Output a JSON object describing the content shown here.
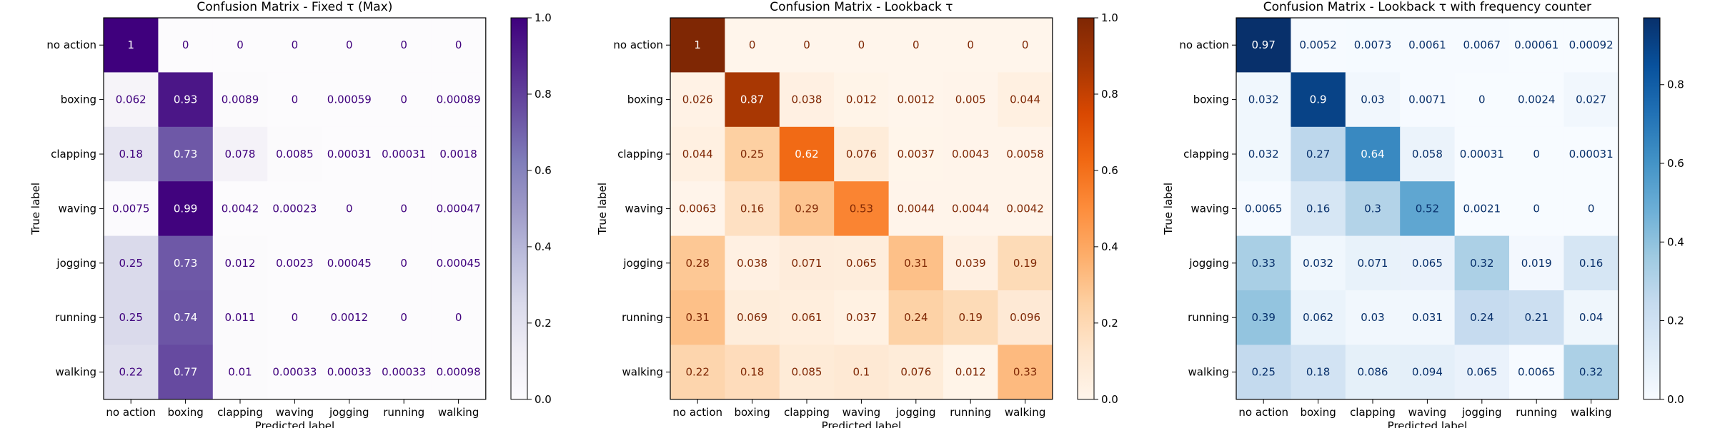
{
  "figure": {
    "xlabel": "Predicted label",
    "ylabel": "True label"
  },
  "chart_data": [
    {
      "type": "heatmap",
      "title": "Confusion Matrix - Fixed τ (Max)",
      "colormap": "purples",
      "colors": [
        "#fcfbfd",
        "#3f007d"
      ],
      "xlabel": "Predicted label",
      "ylabel": "True label",
      "categories": [
        "no action",
        "boxing",
        "clapping",
        "waving",
        "jogging",
        "running",
        "walking"
      ],
      "vlim": [
        0,
        1
      ],
      "colorbar_ticks": [
        "0.0",
        "0.2",
        "0.4",
        "0.6",
        "0.8",
        "1.0"
      ],
      "matrix": [
        [
          "1",
          "0",
          "0",
          "0",
          "0",
          "0",
          "0"
        ],
        [
          "0.062",
          "0.93",
          "0.0089",
          "0",
          "0.00059",
          "0",
          "0.00089"
        ],
        [
          "0.18",
          "0.73",
          "0.078",
          "0.0085",
          "0.00031",
          "0.00031",
          "0.0018"
        ],
        [
          "0.0075",
          "0.99",
          "0.0042",
          "0.00023",
          "0",
          "0",
          "0.00047"
        ],
        [
          "0.25",
          "0.73",
          "0.012",
          "0.0023",
          "0.00045",
          "0",
          "0.00045"
        ],
        [
          "0.25",
          "0.74",
          "0.011",
          "0",
          "0.0012",
          "0",
          "0"
        ],
        [
          "0.22",
          "0.77",
          "0.01",
          "0.00033",
          "0.00033",
          "0.00033",
          "0.00098"
        ]
      ]
    },
    {
      "type": "heatmap",
      "title": "Confusion Matrix - Lookback τ",
      "colormap": "oranges",
      "colors": [
        "#fff5eb",
        "#7f2704"
      ],
      "xlabel": "Predicted label",
      "ylabel": "True label",
      "categories": [
        "no action",
        "boxing",
        "clapping",
        "waving",
        "jogging",
        "running",
        "walking"
      ],
      "vlim": [
        0,
        1
      ],
      "colorbar_ticks": [
        "0.0",
        "0.2",
        "0.4",
        "0.6",
        "0.8",
        "1.0"
      ],
      "matrix": [
        [
          "1",
          "0",
          "0",
          "0",
          "0",
          "0",
          "0"
        ],
        [
          "0.026",
          "0.87",
          "0.038",
          "0.012",
          "0.0012",
          "0.005",
          "0.044"
        ],
        [
          "0.044",
          "0.25",
          "0.62",
          "0.076",
          "0.0037",
          "0.0043",
          "0.0058"
        ],
        [
          "0.0063",
          "0.16",
          "0.29",
          "0.53",
          "0.0044",
          "0.0044",
          "0.0042"
        ],
        [
          "0.28",
          "0.038",
          "0.071",
          "0.065",
          "0.31",
          "0.039",
          "0.19"
        ],
        [
          "0.31",
          "0.069",
          "0.061",
          "0.037",
          "0.24",
          "0.19",
          "0.096"
        ],
        [
          "0.22",
          "0.18",
          "0.085",
          "0.1",
          "0.076",
          "0.012",
          "0.33"
        ]
      ]
    },
    {
      "type": "heatmap",
      "title": "Confusion Matrix - Lookback τ with frequency counter",
      "colormap": "blues",
      "colors": [
        "#f7fbff",
        "#08306b"
      ],
      "xlabel": "Predicted label",
      "ylabel": "True label",
      "categories": [
        "no action",
        "boxing",
        "clapping",
        "waving",
        "jogging",
        "running",
        "walking"
      ],
      "vlim": [
        0,
        0.97
      ],
      "colorbar_ticks": [
        "0.0",
        "0.2",
        "0.4",
        "0.6",
        "0.8"
      ],
      "matrix": [
        [
          "0.97",
          "0.0052",
          "0.0073",
          "0.0061",
          "0.0067",
          "0.00061",
          "0.00092"
        ],
        [
          "0.032",
          "0.9",
          "0.03",
          "0.0071",
          "0",
          "0.0024",
          "0.027"
        ],
        [
          "0.032",
          "0.27",
          "0.64",
          "0.058",
          "0.00031",
          "0",
          "0.00031"
        ],
        [
          "0.0065",
          "0.16",
          "0.3",
          "0.52",
          "0.0021",
          "0",
          "0"
        ],
        [
          "0.33",
          "0.032",
          "0.071",
          "0.065",
          "0.32",
          "0.019",
          "0.16"
        ],
        [
          "0.39",
          "0.062",
          "0.03",
          "0.031",
          "0.24",
          "0.21",
          "0.04"
        ],
        [
          "0.25",
          "0.18",
          "0.086",
          "0.094",
          "0.065",
          "0.0065",
          "0.32"
        ]
      ]
    }
  ]
}
